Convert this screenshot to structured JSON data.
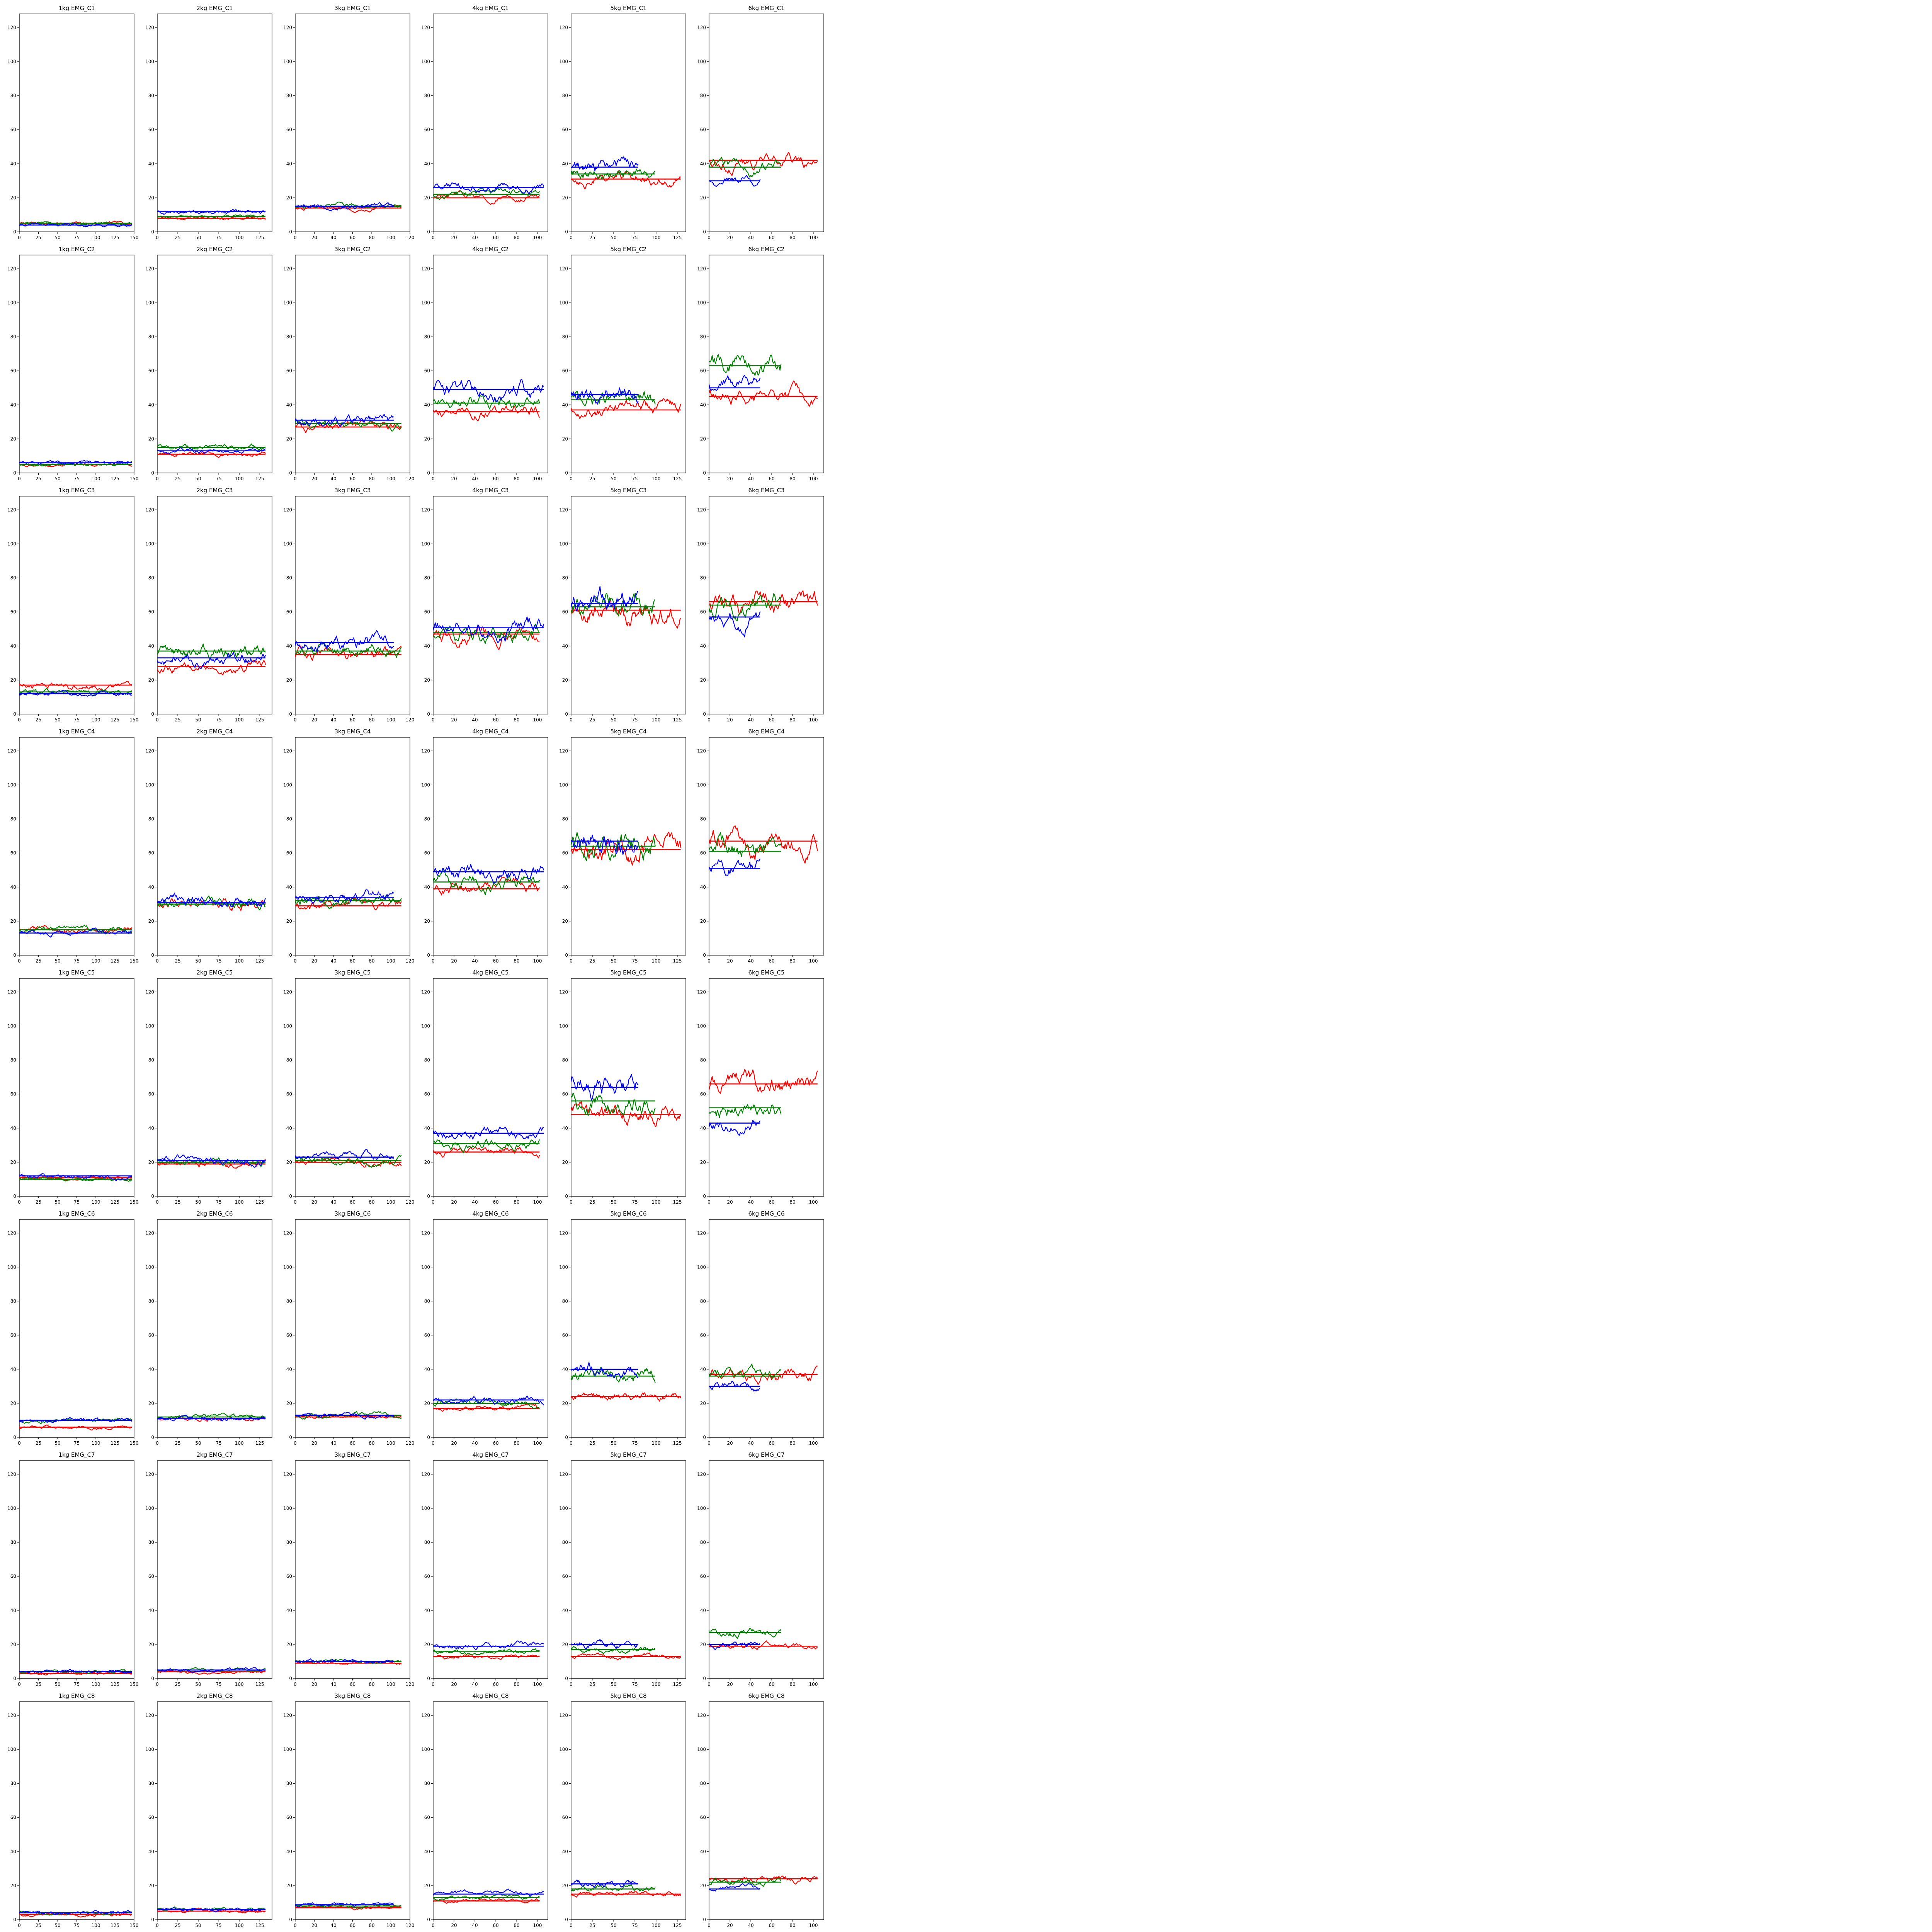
{
  "chart_data": {
    "type": "line",
    "layout": {
      "rows": 8,
      "cols": 6
    },
    "row_labels": [
      "EMG_C1",
      "EMG_C2",
      "EMG_C3",
      "EMG_C4",
      "EMG_C5",
      "EMG_C6",
      "EMG_C7",
      "EMG_C8"
    ],
    "col_labels": [
      "1kg",
      "2kg",
      "3kg",
      "4kg",
      "5kg",
      "6kg"
    ],
    "ylim": [
      0,
      128
    ],
    "yticks": [
      0,
      20,
      40,
      60,
      80,
      100,
      120
    ],
    "xlims": [
      [
        0,
        150
      ],
      [
        0,
        140
      ],
      [
        0,
        120
      ],
      [
        0,
        110
      ],
      [
        0,
        135
      ],
      [
        0,
        110
      ]
    ],
    "xticks": [
      [
        0,
        25,
        50,
        75,
        100,
        125,
        150
      ],
      [
        0,
        25,
        50,
        75,
        100,
        125
      ],
      [
        0,
        20,
        40,
        60,
        80,
        100,
        120
      ],
      [
        0,
        20,
        40,
        60,
        80,
        100
      ],
      [
        0,
        25,
        50,
        75,
        100,
        125
      ],
      [
        0,
        20,
        40,
        60,
        80,
        100
      ]
    ],
    "series_colors": {
      "red": "#ff0000",
      "green": "#008000",
      "blue": "#0000ff"
    },
    "series_lengths": [
      {
        "red": 148,
        "green": 148,
        "blue": 148
      },
      {
        "red": 133,
        "green": 133,
        "blue": 133
      },
      {
        "red": 112,
        "green": 112,
        "blue": 104
      },
      {
        "red": 103,
        "green": 103,
        "blue": 107
      },
      {
        "red": 130,
        "green": 100,
        "blue": 80
      },
      {
        "red": 105,
        "green": 70,
        "blue": 50
      }
    ],
    "series_means": [
      [
        {
          "red": 5,
          "green": 5,
          "blue": 4
        },
        {
          "red": 8,
          "green": 9,
          "blue": 12
        },
        {
          "red": 14,
          "green": 15,
          "blue": 15
        },
        {
          "red": 20,
          "green": 22,
          "blue": 26
        },
        {
          "red": 31,
          "green": 34,
          "blue": 38
        },
        {
          "red": 42,
          "green": 38,
          "blue": 30
        }
      ],
      [
        {
          "red": 5,
          "green": 5,
          "blue": 6
        },
        {
          "red": 11,
          "green": 15,
          "blue": 13
        },
        {
          "red": 27,
          "green": 29,
          "blue": 31
        },
        {
          "red": 36,
          "green": 41,
          "blue": 49
        },
        {
          "red": 37,
          "green": 43,
          "blue": 46
        },
        {
          "red": 45,
          "green": 63,
          "blue": 50
        }
      ],
      [
        {
          "red": 17,
          "green": 13,
          "blue": 12
        },
        {
          "red": 28,
          "green": 37,
          "blue": 33
        },
        {
          "red": 35,
          "green": 37,
          "blue": 42
        },
        {
          "red": 47,
          "green": 48,
          "blue": 51
        },
        {
          "red": 61,
          "green": 63,
          "blue": 65
        },
        {
          "red": 66,
          "green": 64,
          "blue": 57
        }
      ],
      [
        {
          "red": 15,
          "green": 15,
          "blue": 13
        },
        {
          "red": 30,
          "green": 30,
          "blue": 31
        },
        {
          "red": 29,
          "green": 32,
          "blue": 34
        },
        {
          "red": 39,
          "green": 43,
          "blue": 49
        },
        {
          "red": 62,
          "green": 64,
          "blue": 67
        },
        {
          "red": 67,
          "green": 61,
          "blue": 51
        }
      ],
      [
        {
          "red": 11,
          "green": 10,
          "blue": 12
        },
        {
          "red": 19,
          "green": 20,
          "blue": 21
        },
        {
          "red": 20,
          "green": 21,
          "blue": 23
        },
        {
          "red": 26,
          "green": 31,
          "blue": 37
        },
        {
          "red": 48,
          "green": 56,
          "blue": 64
        },
        {
          "red": 66,
          "green": 52,
          "blue": 43
        }
      ],
      [
        {
          "red": 6,
          "green": 10,
          "blue": 10
        },
        {
          "red": 11,
          "green": 12,
          "blue": 11
        },
        {
          "red": 12,
          "green": 13,
          "blue": 13
        },
        {
          "red": 17,
          "green": 20,
          "blue": 22
        },
        {
          "red": 24,
          "green": 36,
          "blue": 40
        },
        {
          "red": 37,
          "green": 36,
          "blue": 30
        }
      ],
      [
        {
          "red": 3,
          "green": 4,
          "blue": 4
        },
        {
          "red": 4,
          "green": 5,
          "blue": 5
        },
        {
          "red": 9,
          "green": 10,
          "blue": 10
        },
        {
          "red": 13,
          "green": 16,
          "blue": 19
        },
        {
          "red": 13,
          "green": 17,
          "blue": 20
        },
        {
          "red": 19,
          "green": 27,
          "blue": 20
        }
      ],
      [
        {
          "red": 3,
          "green": 4,
          "blue": 4
        },
        {
          "red": 5,
          "green": 6,
          "blue": 6
        },
        {
          "red": 7,
          "green": 8,
          "blue": 9
        },
        {
          "red": 11,
          "green": 13,
          "blue": 15
        },
        {
          "red": 15,
          "green": 18,
          "blue": 21
        },
        {
          "red": 24,
          "green": 22,
          "blue": 18
        }
      ]
    ],
    "panel_titles": [
      [
        "1kg EMG_C1",
        "2kg EMG_C1",
        "3kg EMG_C1",
        "4kg EMG_C1",
        "5kg EMG_C1",
        "6kg EMG_C1"
      ],
      [
        "1kg EMG_C2",
        "2kg EMG_C2",
        "3kg EMG_C2",
        "4kg EMG_C2",
        "5kg EMG_C2",
        "6kg EMG_C2"
      ],
      [
        "1kg EMG_C3",
        "2kg EMG_C3",
        "3kg EMG_C3",
        "4kg EMG_C3",
        "5kg EMG_C3",
        "6kg EMG_C3"
      ],
      [
        "1kg EMG_C4",
        "2kg EMG_C4",
        "3kg EMG_C4",
        "4kg EMG_C4",
        "5kg EMG_C4",
        "6kg EMG_C4"
      ],
      [
        "1kg EMG_C5",
        "2kg EMG_C5",
        "3kg EMG_C5",
        "4kg EMG_C5",
        "5kg EMG_C5",
        "6kg EMG_C5"
      ],
      [
        "1kg EMG_C6",
        "2kg EMG_C6",
        "3kg EMG_C6",
        "4kg EMG_C6",
        "5kg EMG_C6",
        "6kg EMG_C6"
      ],
      [
        "1kg EMG_C7",
        "2kg EMG_C7",
        "3kg EMG_C7",
        "4kg EMG_C7",
        "5kg EMG_C7",
        "6kg EMG_C7"
      ],
      [
        "1kg EMG_C8",
        "2kg EMG_C8",
        "3kg EMG_C8",
        "4kg EMG_C8",
        "5kg EMG_C8",
        "6kg EMG_C8"
      ]
    ],
    "grid": false,
    "legend": "none"
  }
}
